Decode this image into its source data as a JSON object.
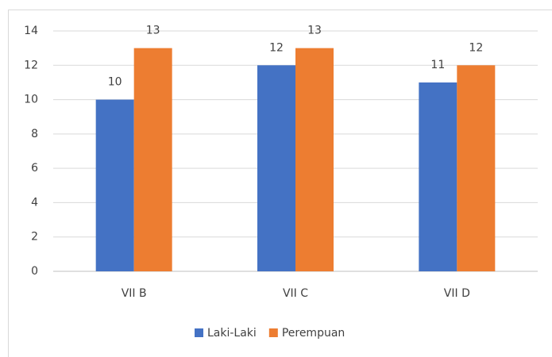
{
  "chart_data": {
    "type": "bar",
    "categories": [
      "VII B",
      "VII C",
      "VII D"
    ],
    "series": [
      {
        "name": "Laki-Laki",
        "color": "#4472c4",
        "values": [
          10,
          12,
          11
        ]
      },
      {
        "name": "Perempuan",
        "color": "#ed7d31",
        "values": [
          13,
          13,
          12
        ]
      }
    ],
    "ylim": [
      0,
      14
    ],
    "yticks": [
      0,
      2,
      4,
      6,
      8,
      10,
      12,
      14
    ],
    "grid": true,
    "legend": "bottom",
    "data_labels": true
  }
}
